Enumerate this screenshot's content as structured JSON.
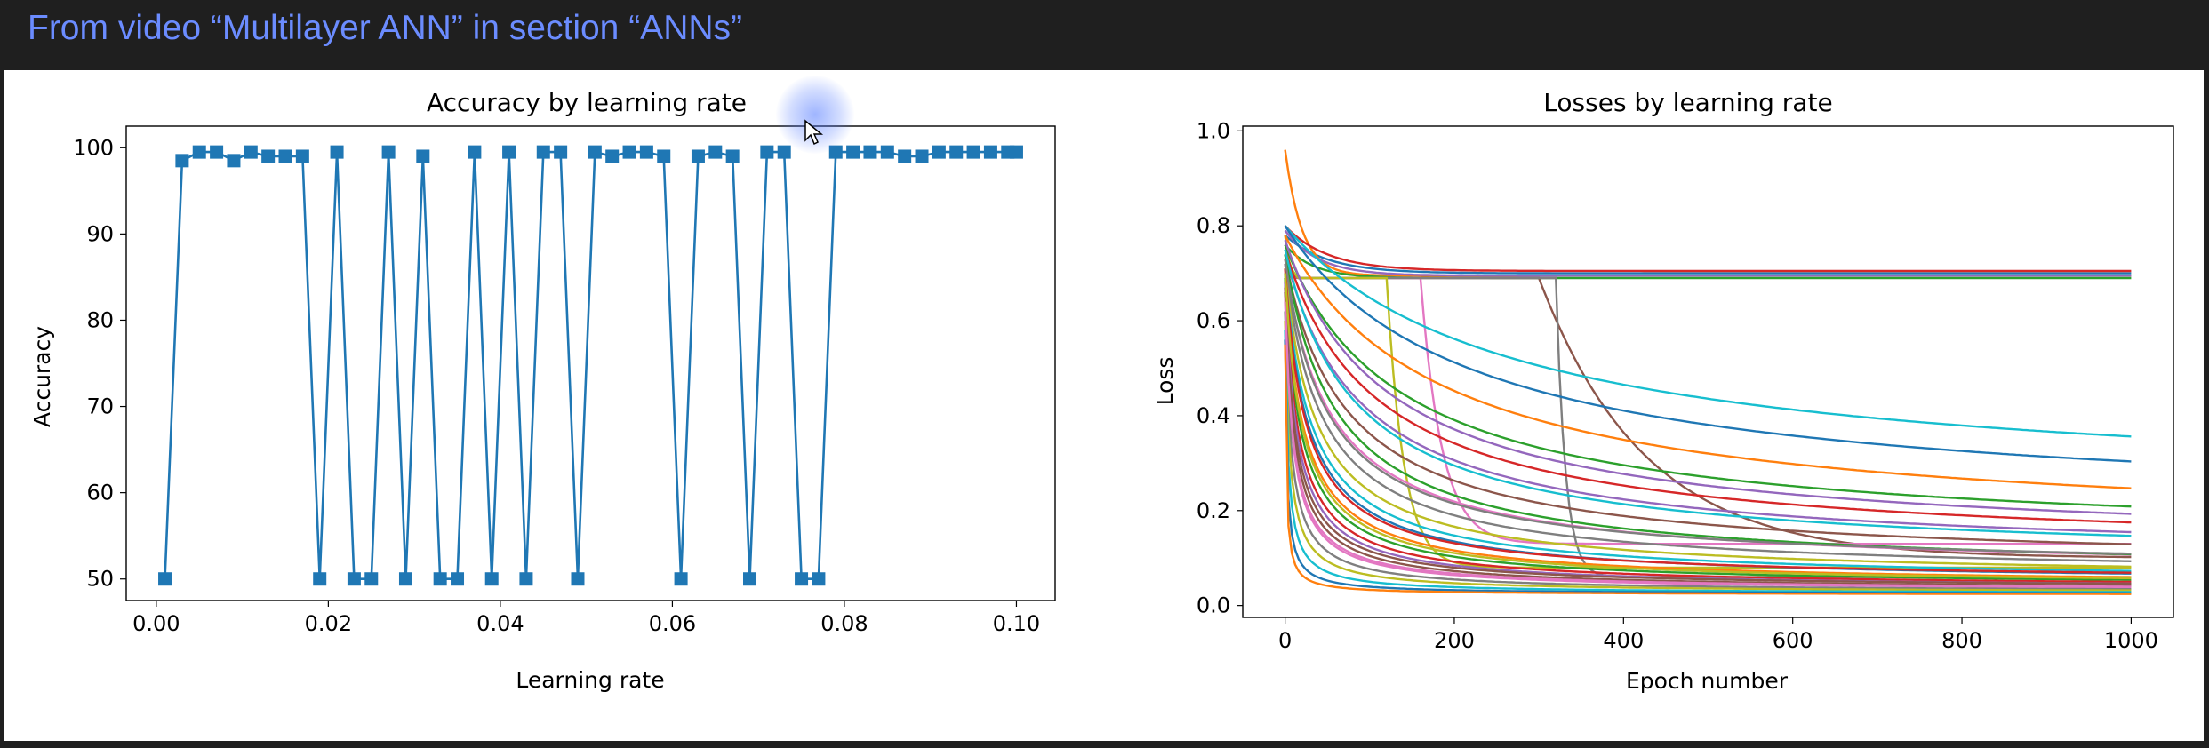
{
  "caption": "From video “Multilayer ANN” in section “ANNs”",
  "colors": {
    "caption": "#6b8cff",
    "background": "#1f1f1f",
    "panel": "#ffffff",
    "accuracy_series": "#1f77b4",
    "loss_cycle": [
      "#1f77b4",
      "#ff7f0e",
      "#2ca02c",
      "#d62728",
      "#9467bd",
      "#8c564b",
      "#e377c2",
      "#7f7f7f",
      "#bcbd22",
      "#17becf"
    ]
  },
  "chart_data": [
    {
      "type": "line",
      "title": "Accuracy by learning rate",
      "xlabel": "Learning rate",
      "ylabel": "Accuracy",
      "xlim": [
        -0.0035,
        0.1045
      ],
      "ylim": [
        47.5,
        102.5
      ],
      "xticks": [
        0.0,
        0.02,
        0.04,
        0.06,
        0.08,
        0.1
      ],
      "xtick_labels": [
        "0.00",
        "0.02",
        "0.04",
        "0.06",
        "0.08",
        "0.10"
      ],
      "yticks": [
        50,
        60,
        70,
        80,
        90,
        100
      ],
      "ytick_labels": [
        "50",
        "60",
        "70",
        "80",
        "90",
        "100"
      ],
      "marker": "square",
      "grid": false,
      "x": [
        0.001,
        0.003,
        0.005,
        0.007,
        0.009,
        0.011,
        0.013,
        0.015,
        0.017,
        0.019,
        0.021,
        0.023,
        0.025,
        0.027,
        0.029,
        0.031,
        0.033,
        0.035,
        0.037,
        0.039,
        0.041,
        0.043,
        0.045,
        0.047,
        0.049,
        0.051,
        0.053,
        0.055,
        0.057,
        0.059,
        0.061,
        0.063,
        0.065,
        0.067,
        0.069,
        0.071,
        0.073,
        0.075,
        0.077,
        0.079,
        0.081,
        0.083,
        0.085,
        0.087,
        0.089,
        0.091,
        0.093,
        0.095,
        0.097,
        0.099,
        0.1
      ],
      "y": [
        50,
        98.5,
        99.5,
        99.5,
        98.5,
        99.5,
        99,
        99,
        99,
        50,
        99.5,
        50,
        50,
        99.5,
        50,
        99,
        50,
        50,
        99.5,
        50,
        99.5,
        50,
        99.5,
        99.5,
        50,
        99.5,
        99,
        99.5,
        99.5,
        99,
        50,
        99,
        99.5,
        99,
        50,
        99.5,
        99.5,
        50,
        50,
        99.5,
        99.5,
        99.5,
        99.5,
        99,
        99,
        99.5,
        99.5,
        99.5,
        99.5,
        99.5,
        99.5
      ]
    },
    {
      "type": "line",
      "title": "Losses by learning rate",
      "xlabel": "Epoch number",
      "ylabel": "Loss",
      "xlim": [
        -50,
        1050
      ],
      "ylim": [
        -0.025,
        1.01
      ],
      "xticks": [
        0,
        200,
        400,
        600,
        800,
        1000
      ],
      "xtick_labels": [
        "0",
        "200",
        "400",
        "600",
        "800",
        "1000"
      ],
      "yticks": [
        0.0,
        0.2,
        0.4,
        0.6,
        0.8,
        1.0
      ],
      "ytick_labels": [
        "0.0",
        "0.2",
        "0.4",
        "0.6",
        "0.8",
        "1.0"
      ],
      "grid": false,
      "epochs": 1000,
      "curves": [
        {
          "start": 0.78,
          "plateau": 0.7,
          "plateau_until": 0,
          "drop_rate": 0.02,
          "final": 0.7
        },
        {
          "start": 0.96,
          "plateau": 0.7,
          "plateau_until": 0,
          "drop_rate": 0.05,
          "final": 0.695
        },
        {
          "start": 0.76,
          "plateau": 0.7,
          "plateau_until": 0,
          "drop_rate": 0.03,
          "final": 0.69
        },
        {
          "start": 0.8,
          "plateau": 0.7,
          "plateau_until": 0,
          "drop_rate": 0.02,
          "final": 0.705
        },
        {
          "start": 0.79,
          "plateau": 0.7,
          "plateau_until": 0,
          "drop_rate": 0.025,
          "final": 0.695
        },
        {
          "start": 0.7,
          "plateau": 0.69,
          "plateau_until": 300,
          "drop_rate": 0.008,
          "final": 0.1
        },
        {
          "start": 0.72,
          "plateau": 0.69,
          "plateau_until": 160,
          "drop_rate": 0.04,
          "final": 0.13
        },
        {
          "start": 0.74,
          "plateau": 0.69,
          "plateau_until": 320,
          "drop_rate": 0.09,
          "final": 0.06
        },
        {
          "start": 0.78,
          "plateau": 0.69,
          "plateau_until": 120,
          "drop_rate": 0.05,
          "final": 0.08
        },
        {
          "start": 0.8,
          "plateau": 0.0,
          "plateau_until": 0,
          "drop_rate": 0.004,
          "final": 0.22
        },
        {
          "start": 0.8,
          "plateau": 0.0,
          "plateau_until": 0,
          "drop_rate": 0.005,
          "final": 0.18
        },
        {
          "start": 0.78,
          "plateau": 0.0,
          "plateau_until": 0,
          "drop_rate": 0.006,
          "final": 0.135
        },
        {
          "start": 0.76,
          "plateau": 0.0,
          "plateau_until": 0,
          "drop_rate": 0.008,
          "final": 0.12
        },
        {
          "start": 0.75,
          "plateau": 0.0,
          "plateau_until": 0,
          "drop_rate": 0.01,
          "final": 0.1
        },
        {
          "start": 0.74,
          "plateau": 0.0,
          "plateau_until": 0,
          "drop_rate": 0.012,
          "final": 0.09
        },
        {
          "start": 0.73,
          "plateau": 0.0,
          "plateau_until": 0,
          "drop_rate": 0.015,
          "final": 0.075
        },
        {
          "start": 0.72,
          "plateau": 0.0,
          "plateau_until": 0,
          "drop_rate": 0.02,
          "final": 0.065
        },
        {
          "start": 0.72,
          "plateau": 0.0,
          "plateau_until": 0,
          "drop_rate": 0.025,
          "final": 0.058
        },
        {
          "start": 0.71,
          "plateau": 0.0,
          "plateau_until": 0,
          "drop_rate": 0.03,
          "final": 0.052
        },
        {
          "start": 0.7,
          "plateau": 0.0,
          "plateau_until": 0,
          "drop_rate": 0.035,
          "final": 0.047
        },
        {
          "start": 0.7,
          "plateau": 0.0,
          "plateau_until": 0,
          "drop_rate": 0.04,
          "final": 0.044
        },
        {
          "start": 0.69,
          "plateau": 0.0,
          "plateau_until": 0,
          "drop_rate": 0.05,
          "final": 0.041
        },
        {
          "start": 0.69,
          "plateau": 0.0,
          "plateau_until": 0,
          "drop_rate": 0.06,
          "final": 0.038
        },
        {
          "start": 0.68,
          "plateau": 0.0,
          "plateau_until": 0,
          "drop_rate": 0.07,
          "final": 0.036
        },
        {
          "start": 0.68,
          "plateau": 0.0,
          "plateau_until": 0,
          "drop_rate": 0.08,
          "final": 0.034
        },
        {
          "start": 0.66,
          "plateau": 0.0,
          "plateau_until": 0,
          "drop_rate": 0.1,
          "final": 0.032
        },
        {
          "start": 0.65,
          "plateau": 0.0,
          "plateau_until": 0,
          "drop_rate": 0.12,
          "final": 0.03
        },
        {
          "start": 0.62,
          "plateau": 0.0,
          "plateau_until": 0,
          "drop_rate": 0.15,
          "final": 0.028
        },
        {
          "start": 0.6,
          "plateau": 0.0,
          "plateau_until": 0,
          "drop_rate": 0.2,
          "final": 0.027
        },
        {
          "start": 0.58,
          "plateau": 0.0,
          "plateau_until": 0,
          "drop_rate": 0.3,
          "final": 0.025
        },
        {
          "start": 0.56,
          "plateau": 0.0,
          "plateau_until": 0,
          "drop_rate": 0.5,
          "final": 0.024
        },
        {
          "start": 0.55,
          "plateau": 0.0,
          "plateau_until": 0,
          "drop_rate": 0.8,
          "final": 0.023
        },
        {
          "start": 0.74,
          "plateau": 0.0,
          "plateau_until": 0,
          "drop_rate": 0.018,
          "final": 0.06
        },
        {
          "start": 0.71,
          "plateau": 0.0,
          "plateau_until": 0,
          "drop_rate": 0.045,
          "final": 0.048
        },
        {
          "start": 0.77,
          "plateau": 0.0,
          "plateau_until": 0,
          "drop_rate": 0.009,
          "final": 0.11
        },
        {
          "start": 0.67,
          "plateau": 0.0,
          "plateau_until": 0,
          "drop_rate": 0.09,
          "final": 0.035
        },
        {
          "start": 0.64,
          "plateau": 0.0,
          "plateau_until": 0,
          "drop_rate": 0.11,
          "final": 0.031
        },
        {
          "start": 0.73,
          "plateau": 0.0,
          "plateau_until": 0,
          "drop_rate": 0.022,
          "final": 0.07
        },
        {
          "start": 0.7,
          "plateau": 0.0,
          "plateau_until": 0,
          "drop_rate": 0.055,
          "final": 0.04
        },
        {
          "start": 0.75,
          "plateau": 0.0,
          "plateau_until": 0,
          "drop_rate": 0.013,
          "final": 0.085
        }
      ]
    }
  ]
}
